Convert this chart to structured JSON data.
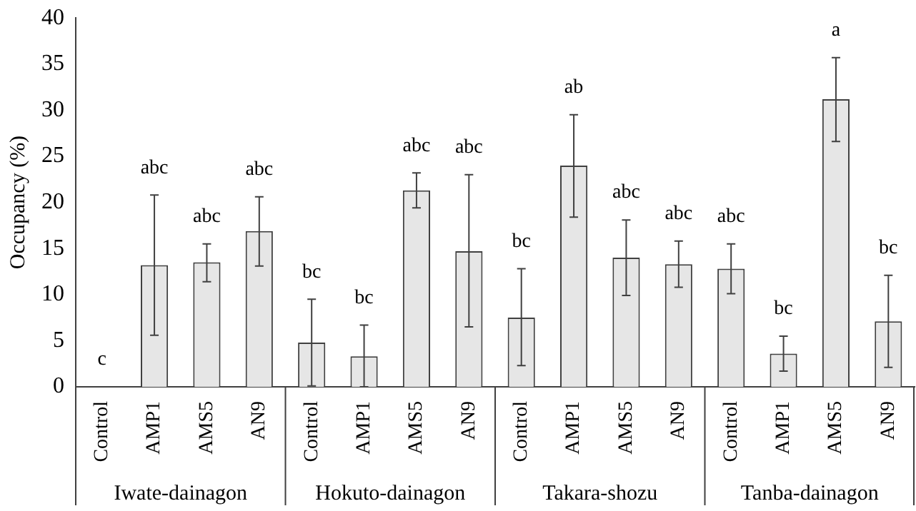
{
  "chart_data": {
    "type": "bar",
    "ylabel": "Occupancy (%)",
    "categories": [
      "Control",
      "AMP1",
      "AMS5",
      "AN9",
      "Control",
      "AMP1",
      "AMS5",
      "AN9",
      "Control",
      "AMP1",
      "AMS5",
      "AN9",
      "Control",
      "AMP1",
      "AMS5",
      "AN9"
    ],
    "values": [
      0,
      13.2,
      13.5,
      16.9,
      4.8,
      3.3,
      21.3,
      14.7,
      7.5,
      24.0,
      14.0,
      13.3,
      12.8,
      3.6,
      31.2,
      7.1
    ],
    "errors": [
      null,
      [
        5.6,
        20.8
      ],
      [
        11.4,
        15.5
      ],
      [
        13.1,
        20.6
      ],
      [
        0.1,
        9.5
      ],
      [
        0,
        6.7
      ],
      [
        19.4,
        23.2
      ],
      [
        6.5,
        23.0
      ],
      [
        2.3,
        12.8
      ],
      [
        18.4,
        29.5
      ],
      [
        9.9,
        18.1
      ],
      [
        10.8,
        15.8
      ],
      [
        10.1,
        15.5
      ],
      [
        1.7,
        5.5
      ],
      [
        26.6,
        35.7
      ],
      [
        2.1,
        12.1
      ]
    ],
    "color": "#e6e6e6",
    "ylim": [
      0,
      40
    ],
    "yticks": [
      0,
      5,
      10,
      15,
      20,
      25,
      30,
      35,
      40
    ],
    "grid": false,
    "legend": false,
    "annotations": [
      "c",
      "abc",
      "abc",
      "abc",
      "bc",
      "bc",
      "abc",
      "abc",
      "bc",
      "ab",
      "abc",
      "abc",
      "abc",
      "bc",
      "a",
      "bc",
      "Iwate-dainagon",
      "Hokuto-dainagon",
      "Takara-shozu",
      "Tanba-dainagon"
    ]
  }
}
